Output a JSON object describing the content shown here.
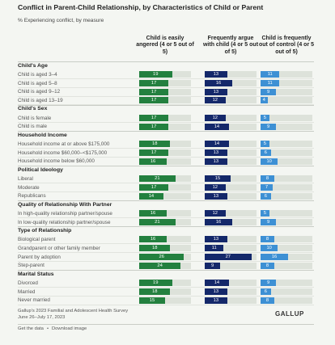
{
  "chart_data": {
    "type": "bar-table",
    "title": "Conflict in Parent-Child Relationship, by Characteristics of Child or Parent",
    "subtitle": "% Experiencing conflict, by measure",
    "xlim": [
      0,
      30
    ],
    "series": [
      {
        "name": "Child is easily angered (4 or 5 out of 5)",
        "color": "#23803f"
      },
      {
        "name": "Frequently argue with child (4 or 5 out of 5)",
        "color": "#14286a"
      },
      {
        "name": "Child is frequently out of control (4 or 5 out of 5)",
        "color": "#3d90d4"
      }
    ],
    "groups": [
      {
        "name": "Child's Age",
        "categories": [
          "Child is aged 3–4",
          "Child is aged 5–8",
          "Child is aged 9–12",
          "Child is aged 13–19"
        ],
        "values": [
          [
            19,
            13,
            11
          ],
          [
            17,
            16,
            11
          ],
          [
            17,
            13,
            9
          ],
          [
            17,
            12,
            4
          ]
        ]
      },
      {
        "name": "Child's Sex",
        "categories": [
          "Child is female",
          "Child is male"
        ],
        "values": [
          [
            17,
            12,
            5
          ],
          [
            17,
            14,
            9
          ]
        ]
      },
      {
        "name": "Household Income",
        "categories": [
          "Household income at or above $175,000",
          "Household income $60,000–<$175,000",
          "Household income below $60,000"
        ],
        "values": [
          [
            18,
            14,
            5
          ],
          [
            17,
            13,
            6
          ],
          [
            16,
            13,
            10
          ]
        ]
      },
      {
        "name": "Political Ideology",
        "categories": [
          "Liberal",
          "Moderate",
          "Republicans"
        ],
        "values": [
          [
            21,
            15,
            8
          ],
          [
            17,
            12,
            7
          ],
          [
            14,
            13,
            6
          ]
        ]
      },
      {
        "name": "Quality of Relationship With Partner",
        "categories": [
          "In high-quality relationship partner/spouse",
          "In low-quality relationship partner/spouse"
        ],
        "values": [
          [
            16,
            12,
            5
          ],
          [
            21,
            16,
            9
          ]
        ]
      },
      {
        "name": "Type of Relationship",
        "categories": [
          "Biological parent",
          "Grandparent or other family member",
          "Parent by adoption",
          "Step-parent"
        ],
        "values": [
          [
            16,
            13,
            8
          ],
          [
            18,
            11,
            10
          ],
          [
            26,
            27,
            16
          ],
          [
            24,
            9,
            8
          ]
        ]
      },
      {
        "name": "Marital Status",
        "categories": [
          "Divorced",
          "Married",
          "Never married"
        ],
        "values": [
          [
            19,
            14,
            9
          ],
          [
            18,
            13,
            6
          ],
          [
            15,
            13,
            8
          ]
        ]
      }
    ],
    "source": [
      "Gallup's 2023 Familial and Adolescent Health Survey",
      "June 26–July 17, 2023"
    ],
    "brand": "GALLUP",
    "links": [
      "Get the data",
      "Download image"
    ],
    "separator": "•"
  }
}
